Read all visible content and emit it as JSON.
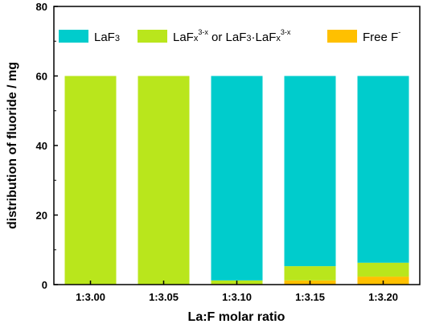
{
  "chart_data": {
    "type": "bar",
    "stacked": true,
    "categories": [
      "1:3.00",
      "1:3.05",
      "1:3.10",
      "1:3.15",
      "1:3.20"
    ],
    "series": [
      {
        "name": "Free F⁻",
        "color": "#ffc000",
        "values": [
          0,
          0,
          0.2,
          1.2,
          2.3
        ]
      },
      {
        "name": "LaFₓ³⁻ˣ or LaF₃·LaFₓ³⁻ˣ",
        "color": "#b9e61c",
        "values": [
          60,
          60,
          1.0,
          4.1,
          4.0
        ]
      },
      {
        "name": "LaF₃",
        "color": "#00cccc",
        "values": [
          0,
          0,
          58.8,
          54.7,
          53.7
        ]
      }
    ],
    "xlabel": "La:F molar ratio",
    "ylabel": "distribution of fluoride / mg",
    "ylim": [
      0,
      80
    ],
    "yticks": [
      "0",
      "20",
      "40",
      "60",
      "80"
    ],
    "grid": false,
    "legend": "top"
  },
  "legend_items": [
    {
      "name": "LaF₃",
      "color": "#00cccc"
    },
    {
      "name": "LaFₓ³⁻ˣ or LaF₃·LaFₓ³⁻ˣ",
      "color": "#b9e61c"
    },
    {
      "name": "Free F⁻",
      "color": "#ffc000"
    }
  ]
}
